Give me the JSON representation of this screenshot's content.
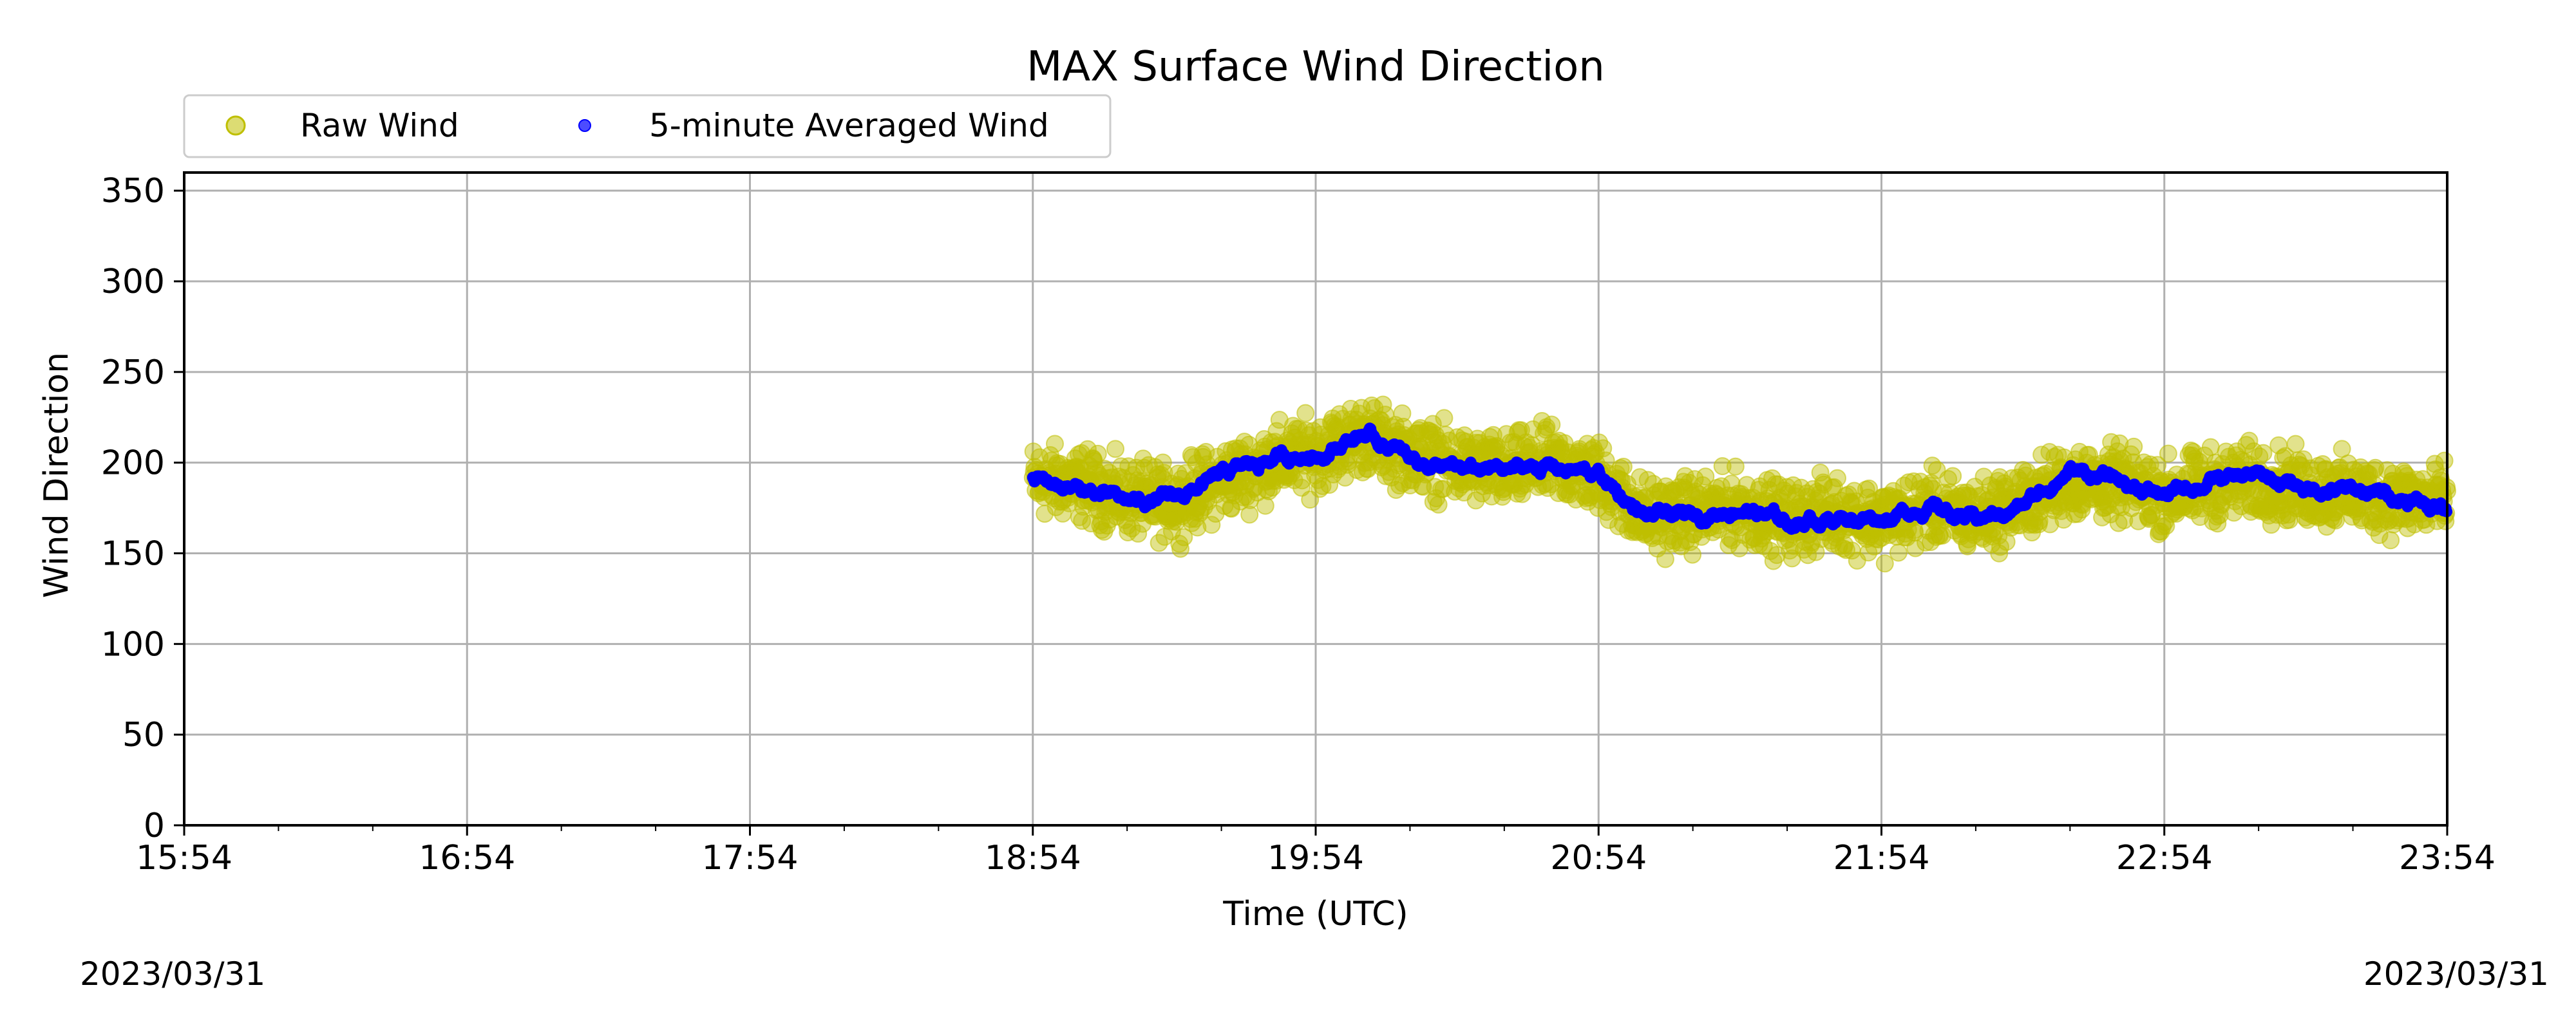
{
  "chart_data": {
    "type": "scatter",
    "title": "MAX Surface Wind Direction",
    "xlabel": "Time (UTC)",
    "ylabel": "Wind Direction",
    "xlim": [
      "15:54",
      "23:54"
    ],
    "ylim": [
      0,
      360
    ],
    "x_ticks": [
      "15:54",
      "16:54",
      "17:54",
      "18:54",
      "19:54",
      "20:54",
      "21:54",
      "22:54",
      "23:54"
    ],
    "y_ticks": [
      0,
      50,
      100,
      150,
      200,
      250,
      300,
      350
    ],
    "grid": true,
    "legend_position": "top-left (above plot)",
    "x": [
      "18:54",
      "19:04",
      "19:14",
      "19:24",
      "19:34",
      "19:44",
      "19:54",
      "20:04",
      "20:14",
      "20:24",
      "20:34",
      "20:44",
      "20:54",
      "21:04",
      "21:14",
      "21:24",
      "21:34",
      "21:44",
      "21:54",
      "22:04",
      "22:14",
      "22:24",
      "22:34",
      "22:44",
      "22:54",
      "23:04",
      "23:14",
      "23:24",
      "23:34",
      "23:44",
      "23:54"
    ],
    "series": [
      {
        "name": "Raw Wind",
        "color": "#bfbf00",
        "marker": "circle",
        "values": [
          190,
          188,
          180,
          178,
          190,
          200,
          205,
          215,
          205,
          198,
          195,
          200,
          192,
          170,
          172,
          175,
          168,
          172,
          168,
          175,
          170,
          178,
          190,
          188,
          182,
          188,
          190,
          185,
          183,
          180,
          178
        ],
        "spread": 22
      },
      {
        "name": "5-minute Averaged Wind",
        "color": "#0000ff",
        "marker": "circle",
        "values": [
          192,
          185,
          178,
          180,
          192,
          202,
          205,
          216,
          203,
          195,
          196,
          198,
          193,
          170,
          170,
          176,
          167,
          170,
          170,
          176,
          168,
          176,
          196,
          190,
          182,
          190,
          192,
          186,
          184,
          182,
          174
        ]
      }
    ]
  },
  "footer": {
    "date_left": "2023/03/31",
    "date_right": "2023/03/31"
  }
}
